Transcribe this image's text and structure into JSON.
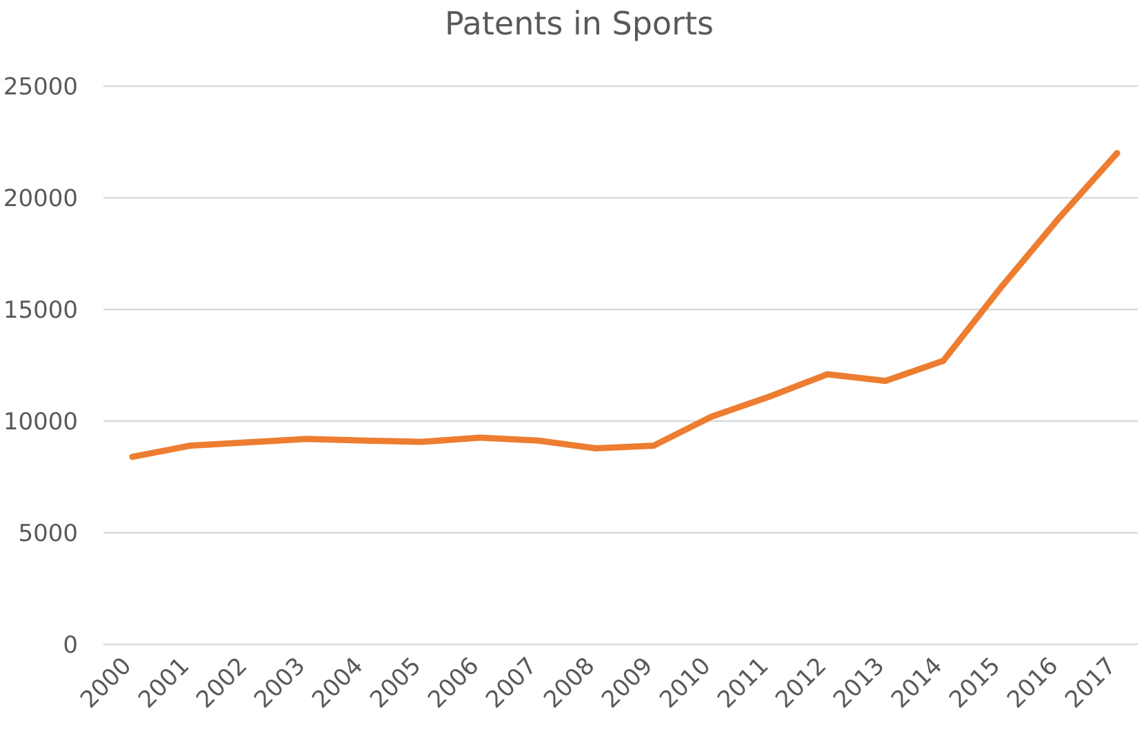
{
  "chart_data": {
    "type": "line",
    "title": "Patents in Sports",
    "xlabel": "",
    "ylabel": "",
    "categories": [
      "2000",
      "2001",
      "2002",
      "2003",
      "2004",
      "2005",
      "2006",
      "2007",
      "2008",
      "2009",
      "2010",
      "2011",
      "2012",
      "2013",
      "2014",
      "2015",
      "2016",
      "2017"
    ],
    "series": [
      {
        "color": "#ED7D31",
        "values": [
          8400,
          8900,
          9050,
          9200,
          9130,
          9070,
          9260,
          9130,
          8780,
          8900,
          10200,
          11100,
          12100,
          11800,
          12700,
          16000,
          19100,
          22000
        ]
      }
    ],
    "ylim": [
      0,
      25000
    ],
    "yticks": [
      0,
      5000,
      10000,
      15000,
      20000,
      25000
    ],
    "grid": "horizontal",
    "legend": "none"
  }
}
